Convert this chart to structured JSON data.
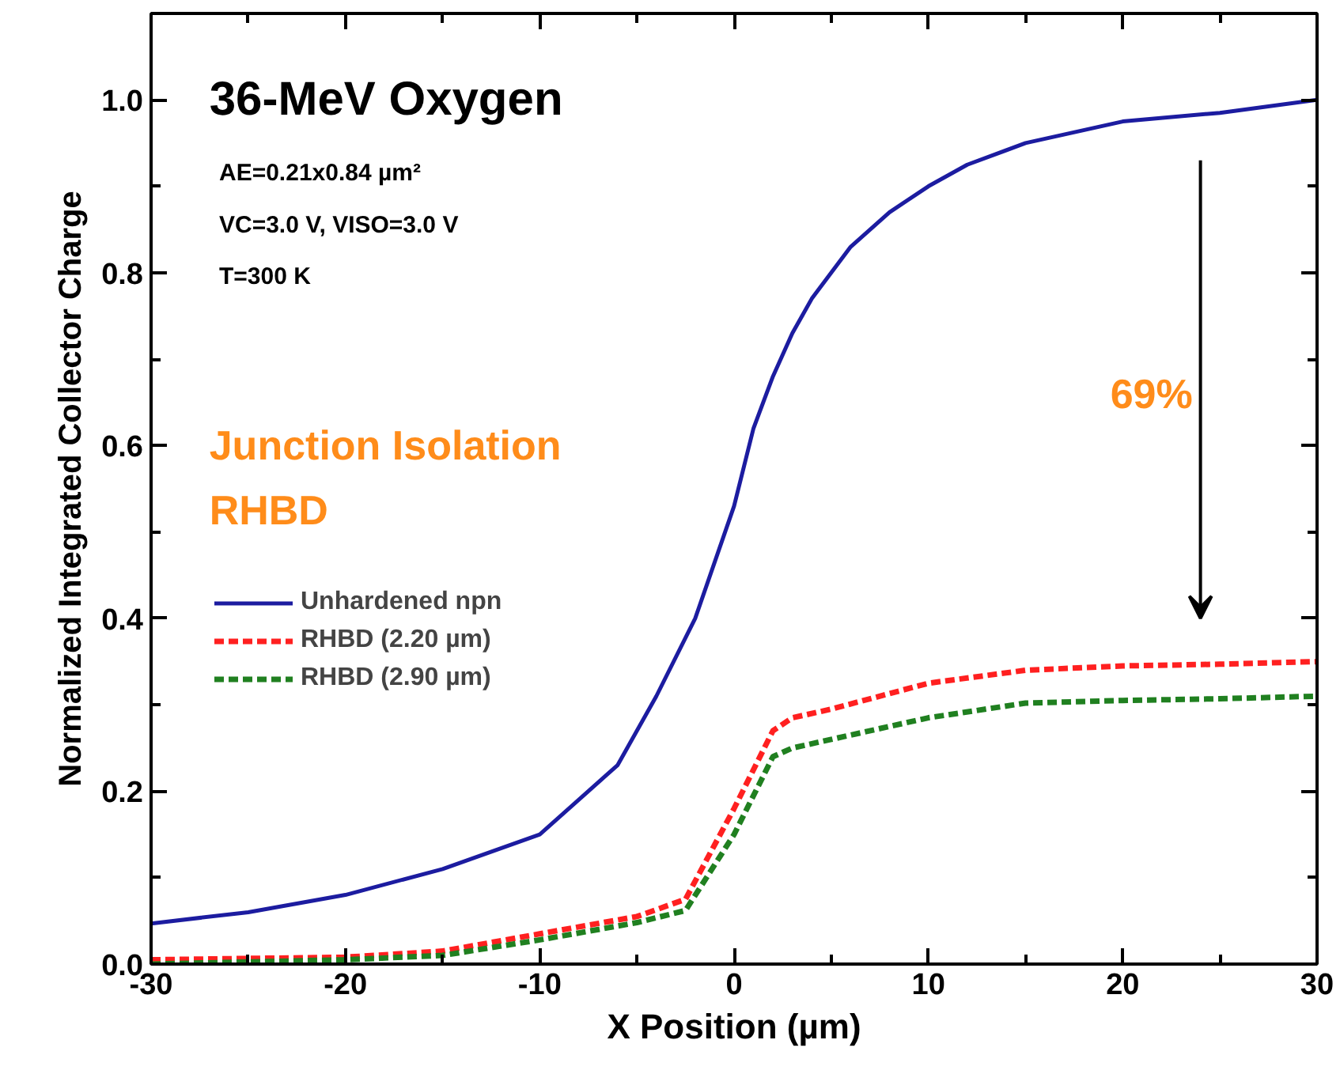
{
  "chart_data": {
    "type": "line",
    "xlabel": "X Position (µm)",
    "ylabel": "Normalized Integrated Collector Charge",
    "xlim": [
      -30,
      30
    ],
    "ylim": [
      0,
      1.1
    ],
    "xticks": [
      -30,
      -20,
      -10,
      0,
      10,
      20,
      30
    ],
    "yticks": [
      "0.0",
      0.2,
      0.4,
      0.6,
      0.8,
      "1.0"
    ],
    "grid": false,
    "legend": "left",
    "line_style": "solid",
    "marker": "none",
    "annotations": [
      "36-MeV Oxygen",
      "AE=0.21x0.84 µm²",
      "VC=3.0 V, VISO=3.0 V",
      "T=300 K",
      "Junction Isolation",
      "RHBD",
      "69%"
    ],
    "series": [
      {
        "name": "Unhardened npn",
        "color": "#1c1ca0",
        "x": [
          -30,
          -25,
          -20,
          -15,
          -10,
          -8,
          -6,
          -4,
          -2,
          0,
          1,
          2,
          3,
          4,
          6,
          8,
          10,
          12,
          15,
          20,
          25,
          30
        ],
        "values": [
          0.047,
          0.06,
          0.08,
          0.11,
          0.15,
          0.19,
          0.23,
          0.31,
          0.4,
          0.53,
          0.62,
          0.68,
          0.73,
          0.77,
          0.83,
          0.87,
          0.9,
          0.925,
          0.95,
          0.975,
          0.985,
          1.0
        ]
      },
      {
        "name": "RHBD (2.20 µm)",
        "color": "#ff2020",
        "line_style": "dashed",
        "x": [
          -30,
          -20,
          -15,
          -10,
          -5,
          -2.5,
          0,
          2,
          3,
          5,
          10,
          15,
          20,
          25,
          30
        ],
        "values": [
          0.005,
          0.008,
          0.015,
          0.035,
          0.055,
          0.075,
          0.18,
          0.27,
          0.285,
          0.295,
          0.325,
          0.34,
          0.345,
          0.347,
          0.35
        ]
      },
      {
        "name": "RHBD (2.90 µm)",
        "color": "#208020",
        "line_style": "dashed",
        "x": [
          -30,
          -20,
          -15,
          -10,
          -5,
          -2.5,
          0,
          2,
          3,
          5,
          10,
          15,
          20,
          25,
          30
        ],
        "values": [
          0.0,
          0.005,
          0.01,
          0.028,
          0.048,
          0.062,
          0.15,
          0.24,
          0.25,
          0.26,
          0.285,
          0.302,
          0.305,
          0.307,
          0.31
        ]
      }
    ]
  }
}
